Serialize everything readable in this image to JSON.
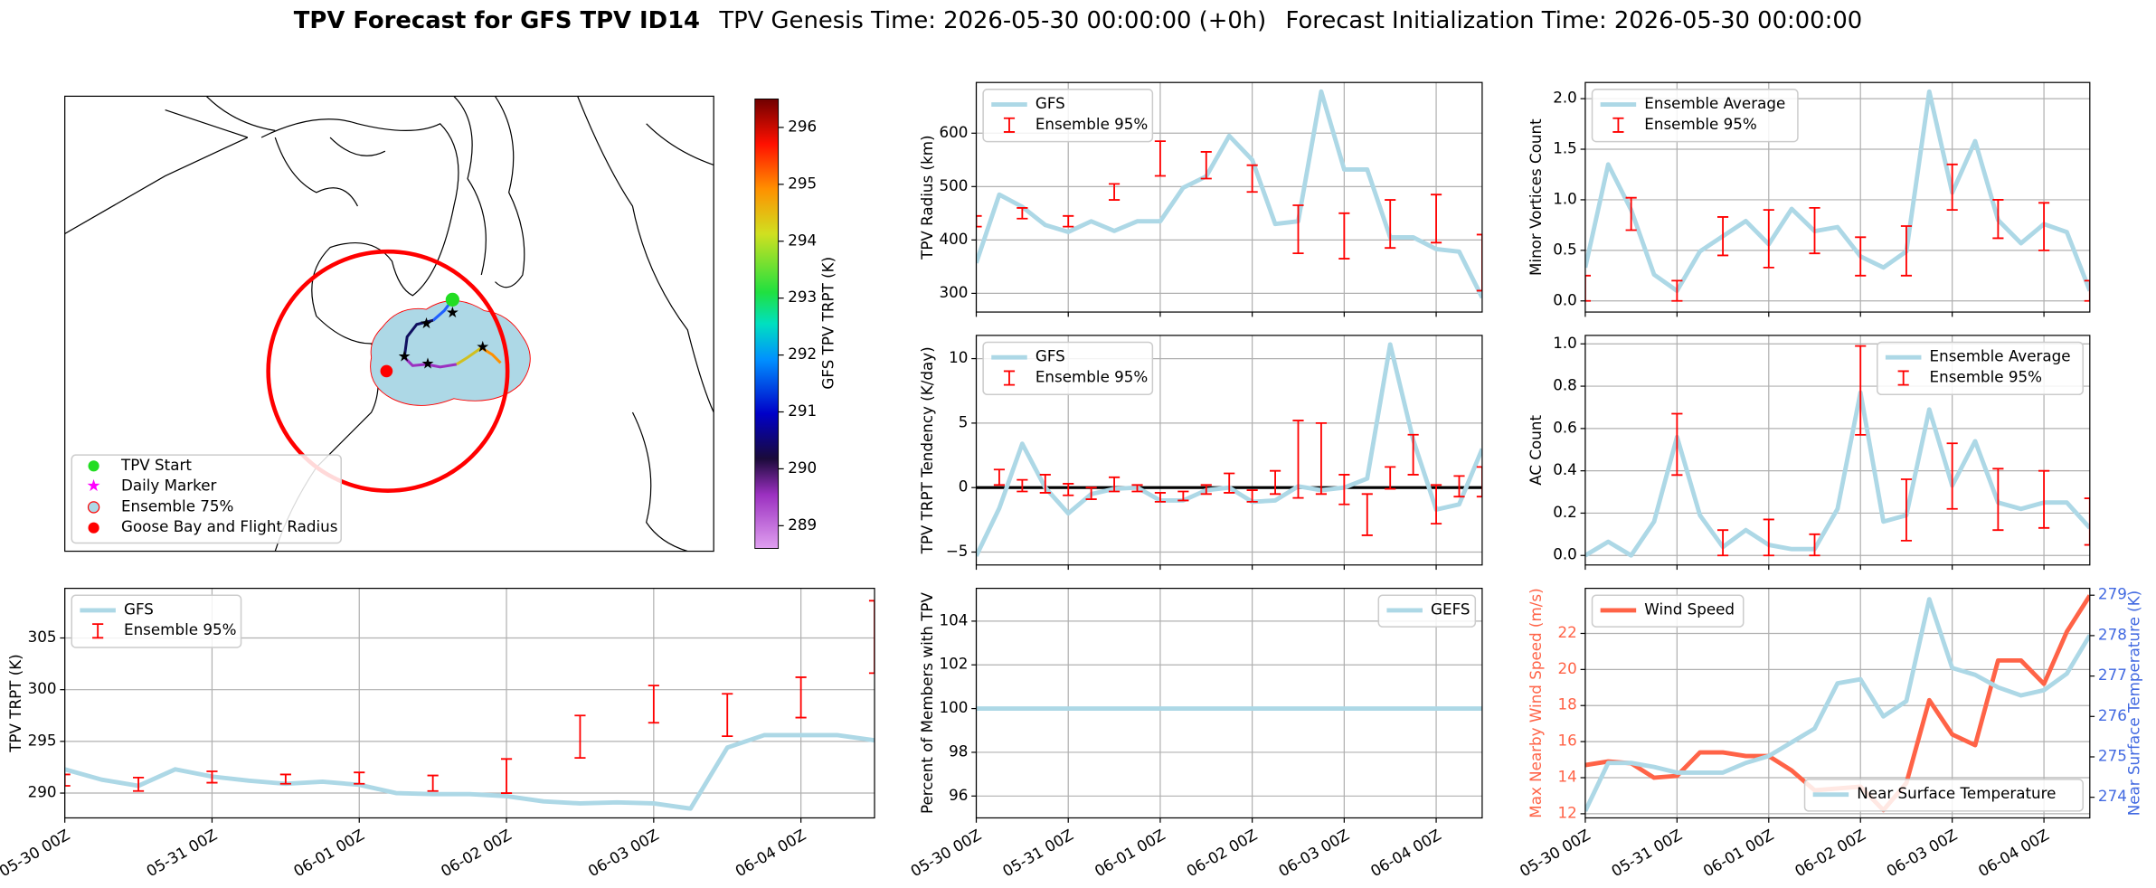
{
  "title": "TPV Forecast for GFS TPV ID14",
  "genesis": "TPV Genesis Time: 2026-05-30 00:00:00 (+0h)",
  "initialization": "Forecast Initialization Time: 2026-05-30 00:00:00",
  "map": {
    "legend": [
      "TPV Start",
      "Daily Marker",
      "Ensemble 75%",
      "Goose Bay and Flight Radius"
    ],
    "colorbar": {
      "label": "GFS TPV TRPT (K)",
      "lim": [
        288.6,
        296.5
      ],
      "ticks": [
        289,
        290,
        291,
        292,
        293,
        294,
        295,
        296
      ]
    }
  },
  "chart_data": [
    {
      "type": "line",
      "ylabel": "TPV Radius (km)",
      "x": [
        "05-30 00Z",
        "05-30 06Z",
        "05-30 12Z",
        "05-30 18Z",
        "05-31 00Z",
        "05-31 06Z",
        "05-31 12Z",
        "05-31 18Z",
        "06-01 00Z",
        "06-01 06Z",
        "06-01 12Z",
        "06-01 18Z",
        "06-02 00Z",
        "06-02 06Z",
        "06-02 12Z",
        "06-02 18Z",
        "06-03 00Z",
        "06-03 06Z",
        "06-03 12Z",
        "06-03 18Z",
        "06-04 00Z",
        "06-04 06Z",
        "06-04 12Z"
      ],
      "series": [
        {
          "name": "GFS",
          "color": "#add8e6",
          "values": [
            357,
            485,
            462,
            428,
            415,
            435,
            417,
            435,
            435,
            498,
            519,
            595,
            550,
            430,
            435,
            678,
            532,
            532,
            405,
            405,
            383,
            378,
            292
          ]
        }
      ],
      "errorbars": {
        "name": "Ensemble 95%",
        "color": "#ff0000",
        "x": [
          "05-30 00Z",
          "05-30 12Z",
          "05-31 00Z",
          "05-31 12Z",
          "06-01 00Z",
          "06-01 12Z",
          "06-02 00Z",
          "06-02 12Z",
          "06-03 00Z",
          "06-03 12Z",
          "06-04 00Z",
          "06-04 12Z"
        ],
        "low": [
          425,
          440,
          425,
          475,
          520,
          515,
          490,
          375,
          365,
          385,
          395,
          305
        ],
        "high": [
          445,
          460,
          445,
          505,
          585,
          565,
          540,
          465,
          450,
          475,
          485,
          410
        ]
      },
      "xlim": [
        "05-30 00Z",
        "06-04 12Z"
      ],
      "xticks": [
        "05-30 00Z",
        "05-31 00Z",
        "06-01 00Z",
        "06-02 00Z",
        "06-03 00Z",
        "06-04 00Z"
      ],
      "show_xticklabels": false,
      "ylim": [
        265,
        695
      ],
      "yticks": [
        300,
        400,
        500,
        600
      ],
      "grid": true,
      "legend": "upper left"
    },
    {
      "type": "line",
      "ylabel": "TPV TRPT Tendency (K/day)",
      "x": [
        "05-30 00Z",
        "05-30 06Z",
        "05-30 12Z",
        "05-30 18Z",
        "05-31 00Z",
        "05-31 06Z",
        "05-31 12Z",
        "05-31 18Z",
        "06-01 00Z",
        "06-01 06Z",
        "06-01 12Z",
        "06-01 18Z",
        "06-02 00Z",
        "06-02 06Z",
        "06-02 12Z",
        "06-02 18Z",
        "06-03 00Z",
        "06-03 06Z",
        "06-03 12Z",
        "06-03 18Z",
        "06-04 00Z",
        "06-04 06Z",
        "06-04 12Z"
      ],
      "series": [
        {
          "name": "GFS",
          "color": "#add8e6",
          "values": [
            -5.3,
            -1.6,
            3.4,
            0,
            -2.0,
            -0.5,
            -0.1,
            0,
            -1.0,
            -1.0,
            -0.2,
            0,
            -1.1,
            -1.0,
            0.1,
            -0.2,
            0,
            0.7,
            11.1,
            3.7,
            -1.7,
            -1.3,
            3.0
          ]
        }
      ],
      "errorbars": {
        "name": "Ensemble 95%",
        "color": "#ff0000",
        "x": [
          "05-30 06Z",
          "05-30 12Z",
          "05-30 18Z",
          "05-31 00Z",
          "05-31 06Z",
          "05-31 12Z",
          "05-31 18Z",
          "06-01 00Z",
          "06-01 06Z",
          "06-01 12Z",
          "06-01 18Z",
          "06-02 00Z",
          "06-02 06Z",
          "06-02 12Z",
          "06-02 18Z",
          "06-03 00Z",
          "06-03 06Z",
          "06-03 12Z",
          "06-03 18Z",
          "06-04 00Z",
          "06-04 06Z",
          "06-04 12Z"
        ],
        "low": [
          0.2,
          -0.3,
          -0.4,
          -0.6,
          -0.9,
          -0.3,
          -0.3,
          -1.1,
          -1.0,
          -0.5,
          -0.4,
          -1.1,
          -0.5,
          -0.8,
          -0.5,
          -1.3,
          -3.7,
          -0.1,
          1.0,
          -2.8,
          -0.7,
          -0.7
        ],
        "high": [
          1.4,
          0.6,
          1.0,
          0.3,
          0.0,
          0.8,
          0.2,
          -0.4,
          -0.3,
          0.2,
          1.1,
          -0.2,
          1.3,
          5.2,
          5.0,
          1.0,
          -0.5,
          1.6,
          4.1,
          0.2,
          0.9,
          1.6
        ]
      },
      "hline": 0,
      "xlim": [
        "05-30 00Z",
        "06-04 12Z"
      ],
      "xticks": [
        "05-30 00Z",
        "05-31 00Z",
        "06-01 00Z",
        "06-02 00Z",
        "06-03 00Z",
        "06-04 00Z"
      ],
      "show_xticklabels": false,
      "ylim": [
        -6,
        11.8
      ],
      "yticks": [
        {
          "value": -5,
          "label": "−5"
        },
        0,
        5,
        10
      ],
      "grid": true,
      "legend": "upper left"
    },
    {
      "type": "line",
      "ylabel": "Percent of Members with TPV",
      "x": [
        "05-30 00Z",
        "05-30 06Z",
        "05-30 12Z",
        "05-30 18Z",
        "05-31 00Z",
        "05-31 06Z",
        "05-31 12Z",
        "05-31 18Z",
        "06-01 00Z",
        "06-01 06Z",
        "06-01 12Z",
        "06-01 18Z",
        "06-02 00Z",
        "06-02 06Z",
        "06-02 12Z",
        "06-02 18Z",
        "06-03 00Z",
        "06-03 06Z",
        "06-03 12Z",
        "06-03 18Z",
        "06-04 00Z",
        "06-04 06Z",
        "06-04 12Z"
      ],
      "series": [
        {
          "name": "GEFS",
          "color": "#add8e6",
          "values": [
            100,
            100,
            100,
            100,
            100,
            100,
            100,
            100,
            100,
            100,
            100,
            100,
            100,
            100,
            100,
            100,
            100,
            100,
            100,
            100,
            100,
            100,
            100
          ]
        }
      ],
      "xlim": [
        "05-30 00Z",
        "06-04 12Z"
      ],
      "xticks": [
        "05-30 00Z",
        "05-31 00Z",
        "06-01 00Z",
        "06-02 00Z",
        "06-03 00Z",
        "06-04 00Z"
      ],
      "show_xticklabels": true,
      "ylim": [
        95,
        105.5
      ],
      "yticks": [
        96,
        98,
        100,
        102,
        104
      ],
      "grid": true,
      "legend": "upper right"
    },
    {
      "type": "line",
      "ylabel": "Minor Vortices Count",
      "x": [
        "05-30 00Z",
        "05-30 06Z",
        "05-30 12Z",
        "05-30 18Z",
        "05-31 00Z",
        "05-31 06Z",
        "05-31 12Z",
        "05-31 18Z",
        "06-01 00Z",
        "06-01 06Z",
        "06-01 12Z",
        "06-01 18Z",
        "06-02 00Z",
        "06-02 06Z",
        "06-02 12Z",
        "06-02 18Z",
        "06-03 00Z",
        "06-03 06Z",
        "06-03 12Z",
        "06-03 18Z",
        "06-04 00Z",
        "06-04 06Z",
        "06-04 12Z"
      ],
      "series": [
        {
          "name": "Ensemble Average",
          "color": "#add8e6",
          "values": [
            0.33,
            1.35,
            0.9,
            0.26,
            0.1,
            0.49,
            0.64,
            0.79,
            0.56,
            0.91,
            0.69,
            0.73,
            0.44,
            0.33,
            0.49,
            2.07,
            1.07,
            1.58,
            0.8,
            0.57,
            0.76,
            0.68,
            0.1
          ]
        }
      ],
      "errorbars": {
        "name": "Ensemble 95%",
        "color": "#ff0000",
        "x": [
          "05-30 00Z",
          "05-30 12Z",
          "05-31 00Z",
          "05-31 12Z",
          "06-01 00Z",
          "06-01 12Z",
          "06-02 00Z",
          "06-02 12Z",
          "06-03 00Z",
          "06-03 12Z",
          "06-04 00Z",
          "06-04 12Z"
        ],
        "low": [
          0,
          0.7,
          0,
          0.45,
          0.33,
          0.47,
          0.25,
          0.25,
          0.9,
          0.62,
          0.5,
          0
        ],
        "high": [
          0.25,
          1.02,
          0.2,
          0.83,
          0.9,
          0.92,
          0.63,
          0.74,
          1.35,
          1.0,
          0.97,
          0.2
        ]
      },
      "xlim": [
        "05-30 00Z",
        "06-04 12Z"
      ],
      "xticks": [
        "05-30 00Z",
        "05-31 00Z",
        "06-01 00Z",
        "06-02 00Z",
        "06-03 00Z",
        "06-04 00Z"
      ],
      "show_xticklabels": false,
      "ylim": [
        -0.11,
        2.16
      ],
      "yticks": [
        {
          "value": 0,
          "label": "0.0"
        },
        0.5,
        {
          "value": 1,
          "label": "1.0"
        },
        1.5,
        {
          "value": 2,
          "label": "2.0"
        }
      ],
      "grid": true,
      "legend": "upper left"
    },
    {
      "type": "line",
      "ylabel": "AC Count",
      "x": [
        "05-30 00Z",
        "05-30 06Z",
        "05-30 12Z",
        "05-30 18Z",
        "05-31 00Z",
        "05-31 06Z",
        "05-31 12Z",
        "05-31 18Z",
        "06-01 00Z",
        "06-01 06Z",
        "06-01 12Z",
        "06-01 18Z",
        "06-02 00Z",
        "06-02 06Z",
        "06-02 12Z",
        "06-02 18Z",
        "06-03 00Z",
        "06-03 06Z",
        "06-03 12Z",
        "06-03 18Z",
        "06-04 00Z",
        "06-04 06Z",
        "06-04 12Z"
      ],
      "series": [
        {
          "name": "Ensemble Average",
          "color": "#add8e6",
          "values": [
            0,
            0.065,
            0,
            0.16,
            0.56,
            0.19,
            0.04,
            0.12,
            0.05,
            0.03,
            0.03,
            0.22,
            0.77,
            0.16,
            0.19,
            0.69,
            0.33,
            0.54,
            0.25,
            0.22,
            0.25,
            0.25,
            0.13
          ]
        }
      ],
      "errorbars": {
        "name": "Ensemble 95%",
        "color": "#ff0000",
        "x": [
          "05-31 00Z",
          "05-31 12Z",
          "06-01 00Z",
          "06-01 12Z",
          "06-02 00Z",
          "06-02 12Z",
          "06-03 00Z",
          "06-03 12Z",
          "06-04 00Z",
          "06-04 12Z"
        ],
        "low": [
          0.38,
          0,
          0,
          0,
          0.57,
          0.07,
          0.22,
          0.12,
          0.13,
          0.05
        ],
        "high": [
          0.67,
          0.12,
          0.17,
          0.1,
          0.99,
          0.36,
          0.53,
          0.41,
          0.4,
          0.27
        ]
      },
      "xlim": [
        "05-30 00Z",
        "06-04 12Z"
      ],
      "xticks": [
        "05-30 00Z",
        "05-31 00Z",
        "06-01 00Z",
        "06-02 00Z",
        "06-03 00Z",
        "06-04 00Z"
      ],
      "show_xticklabels": false,
      "ylim": [
        -0.045,
        1.04
      ],
      "yticks": [
        {
          "value": 0,
          "label": "0.0"
        },
        0.2,
        0.4,
        0.6,
        0.8,
        {
          "value": 1,
          "label": "1.0"
        }
      ],
      "grid": true,
      "legend": "upper right"
    },
    {
      "type": "line",
      "ylabel": "Max Nearby Wind Speed (m/s)",
      "ycolor": "#ff6347",
      "y2label": "Near Surface Temperature (K)",
      "y2color": "#4169e1",
      "x": [
        "05-30 00Z",
        "05-30 06Z",
        "05-30 12Z",
        "05-30 18Z",
        "05-31 00Z",
        "05-31 06Z",
        "05-31 12Z",
        "05-31 18Z",
        "06-01 00Z",
        "06-01 06Z",
        "06-01 12Z",
        "06-01 18Z",
        "06-02 00Z",
        "06-02 06Z",
        "06-02 12Z",
        "06-02 18Z",
        "06-03 00Z",
        "06-03 06Z",
        "06-03 12Z",
        "06-03 18Z",
        "06-04 00Z",
        "06-04 06Z",
        "06-04 12Z"
      ],
      "series": [
        {
          "name": "Wind Speed",
          "color": "#ff6347",
          "legend": "upper left",
          "values": [
            14.7,
            14.9,
            14.8,
            14.0,
            14.1,
            15.4,
            15.4,
            15.2,
            15.2,
            14.4,
            13.3,
            13.4,
            13.5,
            12.2,
            13.7,
            18.3,
            16.4,
            15.8,
            20.5,
            20.5,
            19.2,
            22.1,
            24.1
          ]
        },
        {
          "name": "Near Surface Temperature",
          "color": "#add8e6",
          "legend": "lower right",
          "axis": "y2",
          "values": [
            273.66,
            274.85,
            274.85,
            274.75,
            274.61,
            274.61,
            274.61,
            274.85,
            275.02,
            275.36,
            275.7,
            276.82,
            276.92,
            276.0,
            276.38,
            278.9,
            277.2,
            277.03,
            276.72,
            276.52,
            276.65,
            277.06,
            278.01
          ]
        }
      ],
      "xlim": [
        "05-30 00Z",
        "06-04 12Z"
      ],
      "xticks": [
        "05-30 00Z",
        "05-31 00Z",
        "06-01 00Z",
        "06-02 00Z",
        "06-03 00Z",
        "06-04 00Z"
      ],
      "show_xticklabels": true,
      "ylim": [
        11.77,
        24.5
      ],
      "yticks": [
        12,
        14,
        16,
        18,
        20,
        22
      ],
      "y2lim": [
        273.49,
        279.17
      ],
      "y2ticks": [
        274,
        275,
        276,
        277,
        278,
        279
      ],
      "grid": true
    },
    {
      "type": "line",
      "ylabel": "TPV TRPT (K)",
      "x": [
        "05-30 00Z",
        "05-30 06Z",
        "05-30 12Z",
        "05-30 18Z",
        "05-31 00Z",
        "05-31 06Z",
        "05-31 12Z",
        "05-31 18Z",
        "06-01 00Z",
        "06-01 06Z",
        "06-01 12Z",
        "06-01 18Z",
        "06-02 00Z",
        "06-02 06Z",
        "06-02 12Z",
        "06-02 18Z",
        "06-03 00Z",
        "06-03 06Z",
        "06-03 12Z",
        "06-03 18Z",
        "06-04 00Z",
        "06-04 06Z",
        "06-04 12Z"
      ],
      "series": [
        {
          "name": "GFS",
          "color": "#add8e6",
          "values": [
            292.3,
            291.3,
            290.7,
            292.3,
            291.6,
            291.2,
            290.9,
            291.1,
            290.8,
            290.0,
            289.9,
            289.9,
            289.7,
            289.2,
            289.0,
            289.1,
            289.0,
            288.5,
            294.4,
            295.6,
            295.6,
            295.6,
            295.1
          ]
        }
      ],
      "errorbars": {
        "name": "Ensemble 95%",
        "color": "#ff0000",
        "x": [
          "05-30 00Z",
          "05-30 12Z",
          "05-31 00Z",
          "05-31 12Z",
          "06-01 00Z",
          "06-01 12Z",
          "06-02 00Z",
          "06-02 12Z",
          "06-03 00Z",
          "06-03 12Z",
          "06-04 00Z",
          "06-04 12Z"
        ],
        "low": [
          290.7,
          290.2,
          291.0,
          290.9,
          290.9,
          290.2,
          290.0,
          293.4,
          296.8,
          295.5,
          297.3,
          301.6
        ],
        "high": [
          291.8,
          291.5,
          292.1,
          291.8,
          292.0,
          291.7,
          293.3,
          297.5,
          300.4,
          299.6,
          301.2,
          308.6
        ]
      },
      "xlim": [
        "05-30 00Z",
        "06-04 12Z"
      ],
      "xticks": [
        "05-30 00Z",
        "05-31 00Z",
        "06-01 00Z",
        "06-02 00Z",
        "06-03 00Z",
        "06-04 00Z"
      ],
      "show_xticklabels": true,
      "ylim": [
        287.6,
        309.8
      ],
      "yticks": [
        290,
        295,
        300,
        305
      ],
      "grid": true,
      "legend": "upper left"
    }
  ]
}
